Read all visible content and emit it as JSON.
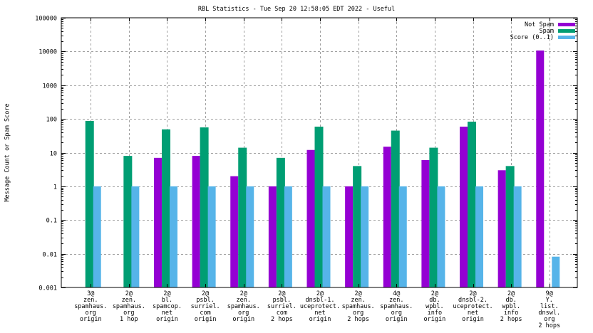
{
  "chart_data": {
    "type": "bar",
    "title": "RBL Statistics - Tue Sep 20 12:58:05 EDT 2022 - Useful",
    "xlabel": "",
    "ylabel": "Message Count or Spam Score",
    "yscale": "log",
    "ylim": [
      0.001,
      100000
    ],
    "yticks": [
      "0.001",
      "0.01",
      "0.1",
      "1",
      "10",
      "100",
      "1000",
      "10000",
      "100000"
    ],
    "ytick_values": [
      0.001,
      0.01,
      0.1,
      1,
      10,
      100,
      1000,
      10000,
      100000
    ],
    "grid": true,
    "legend_position": "top-right",
    "categories": [
      [
        "3@",
        "zen.",
        "spamhaus.",
        "org",
        "origin"
      ],
      [
        "2@",
        "zen.",
        "spamhaus.",
        "org",
        "1 hop"
      ],
      [
        "2@",
        "bl.",
        "spamcop.",
        "net",
        "origin"
      ],
      [
        "2@",
        "psbl.",
        "surriel.",
        "com",
        "origin"
      ],
      [
        "2@",
        "zen.",
        "spamhaus.",
        "org",
        "origin"
      ],
      [
        "2@",
        "psbl.",
        "surriel.",
        "com",
        "2 hops"
      ],
      [
        "2@",
        "dnsbl-1.",
        "uceprotect.",
        "net",
        "origin"
      ],
      [
        "2@",
        "zen.",
        "spamhaus.",
        "org",
        "2 hops"
      ],
      [
        "4@",
        "zen.",
        "spamhaus.",
        "org",
        "origin"
      ],
      [
        "2@",
        "db.",
        "wpbl.",
        "info",
        "origin"
      ],
      [
        "2@",
        "dnsbl-2.",
        "uceprotect.",
        "net",
        "origin"
      ],
      [
        "2@",
        "db.",
        "wpbl.",
        "info",
        "2 hops"
      ],
      [
        "9@",
        "Y.",
        "list.",
        "dnswl.",
        "org",
        "2 hops"
      ]
    ],
    "series": [
      {
        "name": "Not Spam",
        "color": "#9400d3",
        "values": [
          0,
          0,
          7,
          8,
          2,
          1,
          12,
          1,
          15,
          6,
          59,
          3,
          10700
        ]
      },
      {
        "name": "Spam",
        "color": "#009e73",
        "values": [
          87,
          8,
          49,
          56,
          14,
          7,
          59,
          4,
          45,
          14,
          83,
          4,
          0
        ]
      },
      {
        "name": "Score (0..1)",
        "color": "#56b4e9",
        "values": [
          1,
          1,
          1,
          1,
          1,
          1,
          1,
          1,
          1,
          1,
          1,
          1,
          0.0082
        ]
      }
    ]
  }
}
